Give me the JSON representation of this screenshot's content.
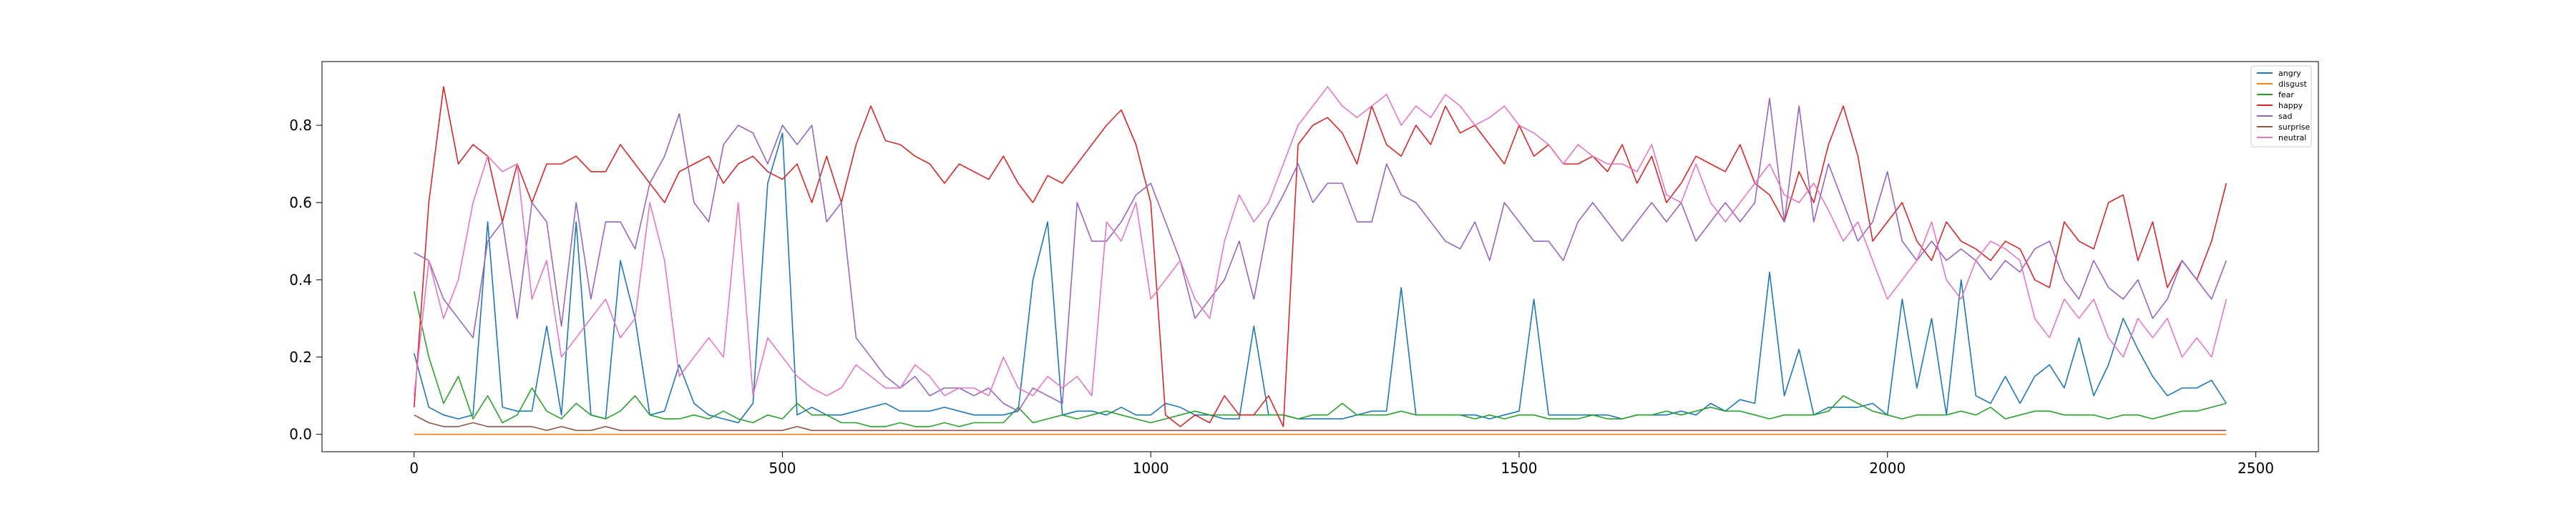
{
  "chart_data": {
    "type": "line",
    "title": "",
    "xlabel": "",
    "ylabel": "",
    "xlim": [
      -125,
      2585
    ],
    "ylim": [
      -0.045,
      0.965
    ],
    "x_ticks": [
      0,
      500,
      1000,
      1500,
      2000,
      2500
    ],
    "x_tick_labels": [
      "0",
      "500",
      "1000",
      "1500",
      "2000",
      "2500"
    ],
    "y_ticks": [
      0.0,
      0.2,
      0.4,
      0.6,
      0.8
    ],
    "y_tick_labels": [
      "0.0",
      "0.2",
      "0.4",
      "0.6",
      "0.8"
    ],
    "grid": false,
    "legend_placement": "top-right",
    "x_range": [
      0,
      2460
    ],
    "sample_step": 20,
    "series": [
      {
        "name": "angry",
        "color": "#1f77b4",
        "values": [
          0.21,
          0.07,
          0.05,
          0.04,
          0.05,
          0.55,
          0.07,
          0.06,
          0.06,
          0.28,
          0.05,
          0.55,
          0.05,
          0.04,
          0.45,
          0.3,
          0.05,
          0.06,
          0.18,
          0.08,
          0.05,
          0.04,
          0.03,
          0.08,
          0.65,
          0.78,
          0.05,
          0.07,
          0.05,
          0.05,
          0.06,
          0.07,
          0.08,
          0.06,
          0.06,
          0.06,
          0.07,
          0.06,
          0.05,
          0.05,
          0.05,
          0.06,
          0.4,
          0.55,
          0.05,
          0.06,
          0.06,
          0.05,
          0.07,
          0.05,
          0.05,
          0.08,
          0.07,
          0.05,
          0.05,
          0.04,
          0.04,
          0.28,
          0.05,
          0.05,
          0.04,
          0.04,
          0.04,
          0.04,
          0.05,
          0.06,
          0.06,
          0.38,
          0.05,
          0.05,
          0.05,
          0.05,
          0.05,
          0.04,
          0.05,
          0.06,
          0.35,
          0.05,
          0.05,
          0.05,
          0.05,
          0.05,
          0.04,
          0.05,
          0.05,
          0.05,
          0.06,
          0.05,
          0.08,
          0.06,
          0.09,
          0.08,
          0.42,
          0.1,
          0.22,
          0.05,
          0.07,
          0.07,
          0.07,
          0.08,
          0.05,
          0.35,
          0.12,
          0.3,
          0.05,
          0.4,
          0.1,
          0.08,
          0.15,
          0.08,
          0.15,
          0.18,
          0.12,
          0.25,
          0.1,
          0.18,
          0.3,
          0.22,
          0.15,
          0.1,
          0.12,
          0.12,
          0.14,
          0.08
        ]
      },
      {
        "name": "disgust",
        "color": "#ff7f0e",
        "values": [
          0.0,
          0.0,
          0.0,
          0.0,
          0.0,
          0.0,
          0.0,
          0.0,
          0.0,
          0.0,
          0.0,
          0.0,
          0.0,
          0.0,
          0.0,
          0.0,
          0.0,
          0.0,
          0.0,
          0.0,
          0.0,
          0.0,
          0.0,
          0.0,
          0.0,
          0.0,
          0.0,
          0.0,
          0.0,
          0.0,
          0.0,
          0.0,
          0.0,
          0.0,
          0.0,
          0.0,
          0.0,
          0.0,
          0.0,
          0.0,
          0.0,
          0.0,
          0.0,
          0.0,
          0.0,
          0.0,
          0.0,
          0.0,
          0.0,
          0.0,
          0.0,
          0.0,
          0.0,
          0.0,
          0.0,
          0.0,
          0.0,
          0.0,
          0.0,
          0.0,
          0.0,
          0.0,
          0.0,
          0.0,
          0.0,
          0.0,
          0.0,
          0.0,
          0.0,
          0.0,
          0.0,
          0.0,
          0.0,
          0.0,
          0.0,
          0.0,
          0.0,
          0.0,
          0.0,
          0.0,
          0.0,
          0.0,
          0.0,
          0.0,
          0.0,
          0.0,
          0.0,
          0.0,
          0.0,
          0.0,
          0.0,
          0.0,
          0.0,
          0.0,
          0.0,
          0.0,
          0.0,
          0.0,
          0.0,
          0.0,
          0.0,
          0.0,
          0.0,
          0.0,
          0.0,
          0.0,
          0.0,
          0.0,
          0.0,
          0.0,
          0.0,
          0.0,
          0.0,
          0.0,
          0.0,
          0.0,
          0.0,
          0.0,
          0.0,
          0.0,
          0.0,
          0.0,
          0.0,
          0.0
        ]
      },
      {
        "name": "fear",
        "color": "#2ca02c",
        "values": [
          0.37,
          0.2,
          0.08,
          0.15,
          0.04,
          0.1,
          0.03,
          0.05,
          0.12,
          0.06,
          0.04,
          0.08,
          0.05,
          0.04,
          0.06,
          0.1,
          0.05,
          0.04,
          0.04,
          0.05,
          0.04,
          0.06,
          0.04,
          0.03,
          0.05,
          0.04,
          0.08,
          0.05,
          0.05,
          0.03,
          0.03,
          0.02,
          0.02,
          0.03,
          0.02,
          0.02,
          0.03,
          0.02,
          0.03,
          0.03,
          0.03,
          0.07,
          0.03,
          0.04,
          0.05,
          0.04,
          0.05,
          0.06,
          0.05,
          0.04,
          0.03,
          0.04,
          0.05,
          0.06,
          0.05,
          0.05,
          0.05,
          0.05,
          0.05,
          0.05,
          0.04,
          0.05,
          0.05,
          0.08,
          0.05,
          0.05,
          0.05,
          0.06,
          0.05,
          0.05,
          0.05,
          0.05,
          0.04,
          0.05,
          0.04,
          0.05,
          0.05,
          0.04,
          0.04,
          0.04,
          0.05,
          0.04,
          0.04,
          0.05,
          0.05,
          0.06,
          0.05,
          0.06,
          0.07,
          0.06,
          0.06,
          0.05,
          0.04,
          0.05,
          0.05,
          0.05,
          0.06,
          0.1,
          0.08,
          0.06,
          0.05,
          0.04,
          0.05,
          0.05,
          0.05,
          0.06,
          0.05,
          0.07,
          0.04,
          0.05,
          0.06,
          0.06,
          0.05,
          0.05,
          0.05,
          0.04,
          0.05,
          0.05,
          0.04,
          0.05,
          0.06,
          0.06,
          0.07,
          0.08
        ]
      },
      {
        "name": "happy",
        "color": "#d62728",
        "values": [
          0.07,
          0.6,
          0.9,
          0.7,
          0.75,
          0.72,
          0.55,
          0.7,
          0.6,
          0.7,
          0.7,
          0.72,
          0.68,
          0.68,
          0.75,
          0.7,
          0.65,
          0.6,
          0.68,
          0.7,
          0.72,
          0.65,
          0.7,
          0.72,
          0.68,
          0.66,
          0.7,
          0.6,
          0.72,
          0.6,
          0.75,
          0.85,
          0.76,
          0.75,
          0.72,
          0.7,
          0.65,
          0.7,
          0.68,
          0.66,
          0.72,
          0.65,
          0.6,
          0.67,
          0.65,
          0.7,
          0.75,
          0.8,
          0.84,
          0.75,
          0.6,
          0.05,
          0.02,
          0.05,
          0.03,
          0.1,
          0.05,
          0.05,
          0.1,
          0.02,
          0.75,
          0.8,
          0.82,
          0.78,
          0.7,
          0.85,
          0.75,
          0.72,
          0.8,
          0.75,
          0.85,
          0.78,
          0.8,
          0.75,
          0.7,
          0.8,
          0.72,
          0.75,
          0.7,
          0.7,
          0.72,
          0.68,
          0.75,
          0.65,
          0.72,
          0.6,
          0.65,
          0.72,
          0.7,
          0.68,
          0.75,
          0.65,
          0.62,
          0.55,
          0.68,
          0.6,
          0.75,
          0.85,
          0.72,
          0.5,
          0.55,
          0.6,
          0.5,
          0.45,
          0.55,
          0.5,
          0.48,
          0.45,
          0.5,
          0.48,
          0.4,
          0.38,
          0.55,
          0.5,
          0.48,
          0.6,
          0.62,
          0.45,
          0.55,
          0.38,
          0.45,
          0.4,
          0.5,
          0.65
        ]
      },
      {
        "name": "sad",
        "color": "#9467bd",
        "values": [
          0.47,
          0.45,
          0.35,
          0.3,
          0.25,
          0.5,
          0.55,
          0.3,
          0.6,
          0.55,
          0.28,
          0.6,
          0.35,
          0.55,
          0.55,
          0.48,
          0.65,
          0.72,
          0.83,
          0.6,
          0.55,
          0.75,
          0.8,
          0.78,
          0.7,
          0.8,
          0.75,
          0.8,
          0.55,
          0.6,
          0.25,
          0.2,
          0.15,
          0.12,
          0.15,
          0.1,
          0.12,
          0.12,
          0.1,
          0.12,
          0.08,
          0.06,
          0.12,
          0.1,
          0.08,
          0.6,
          0.5,
          0.5,
          0.55,
          0.62,
          0.65,
          0.55,
          0.45,
          0.3,
          0.35,
          0.4,
          0.5,
          0.35,
          0.55,
          0.62,
          0.7,
          0.6,
          0.65,
          0.65,
          0.55,
          0.55,
          0.7,
          0.62,
          0.6,
          0.55,
          0.5,
          0.48,
          0.55,
          0.45,
          0.6,
          0.55,
          0.5,
          0.5,
          0.45,
          0.55,
          0.6,
          0.55,
          0.5,
          0.55,
          0.6,
          0.55,
          0.6,
          0.5,
          0.55,
          0.6,
          0.55,
          0.6,
          0.87,
          0.55,
          0.85,
          0.55,
          0.7,
          0.6,
          0.5,
          0.55,
          0.68,
          0.5,
          0.45,
          0.5,
          0.45,
          0.48,
          0.45,
          0.4,
          0.45,
          0.42,
          0.48,
          0.5,
          0.4,
          0.35,
          0.45,
          0.38,
          0.35,
          0.4,
          0.3,
          0.35,
          0.45,
          0.4,
          0.35,
          0.45
        ]
      },
      {
        "name": "surprise",
        "color": "#8c564b",
        "values": [
          0.05,
          0.03,
          0.02,
          0.02,
          0.03,
          0.02,
          0.02,
          0.02,
          0.02,
          0.01,
          0.02,
          0.01,
          0.01,
          0.02,
          0.01,
          0.01,
          0.01,
          0.01,
          0.01,
          0.01,
          0.01,
          0.01,
          0.01,
          0.01,
          0.01,
          0.01,
          0.02,
          0.01,
          0.01,
          0.01,
          0.01,
          0.01,
          0.01,
          0.01,
          0.01,
          0.01,
          0.01,
          0.01,
          0.01,
          0.01,
          0.01,
          0.01,
          0.01,
          0.01,
          0.01,
          0.01,
          0.01,
          0.01,
          0.01,
          0.01,
          0.01,
          0.01,
          0.01,
          0.01,
          0.01,
          0.01,
          0.01,
          0.01,
          0.01,
          0.01,
          0.01,
          0.01,
          0.01,
          0.01,
          0.01,
          0.01,
          0.01,
          0.01,
          0.01,
          0.01,
          0.01,
          0.01,
          0.01,
          0.01,
          0.01,
          0.01,
          0.01,
          0.01,
          0.01,
          0.01,
          0.01,
          0.01,
          0.01,
          0.01,
          0.01,
          0.01,
          0.01,
          0.01,
          0.01,
          0.01,
          0.01,
          0.01,
          0.01,
          0.01,
          0.01,
          0.01,
          0.01,
          0.01,
          0.01,
          0.01,
          0.01,
          0.01,
          0.01,
          0.01,
          0.01,
          0.01,
          0.01,
          0.01,
          0.01,
          0.01,
          0.01,
          0.01,
          0.01,
          0.01,
          0.01,
          0.01,
          0.01,
          0.01,
          0.01,
          0.01,
          0.01,
          0.01,
          0.01,
          0.01
        ]
      },
      {
        "name": "neutral",
        "color": "#e377c2",
        "values": [
          0.1,
          0.45,
          0.3,
          0.4,
          0.6,
          0.72,
          0.68,
          0.7,
          0.35,
          0.45,
          0.2,
          0.25,
          0.3,
          0.35,
          0.25,
          0.3,
          0.6,
          0.45,
          0.15,
          0.2,
          0.25,
          0.2,
          0.6,
          0.1,
          0.25,
          0.2,
          0.15,
          0.12,
          0.1,
          0.12,
          0.18,
          0.15,
          0.12,
          0.12,
          0.18,
          0.15,
          0.1,
          0.12,
          0.12,
          0.1,
          0.2,
          0.12,
          0.1,
          0.15,
          0.12,
          0.15,
          0.1,
          0.55,
          0.5,
          0.6,
          0.35,
          0.4,
          0.45,
          0.35,
          0.3,
          0.5,
          0.62,
          0.55,
          0.6,
          0.7,
          0.8,
          0.85,
          0.9,
          0.85,
          0.82,
          0.85,
          0.88,
          0.8,
          0.85,
          0.82,
          0.88,
          0.85,
          0.8,
          0.82,
          0.85,
          0.8,
          0.78,
          0.75,
          0.7,
          0.75,
          0.72,
          0.7,
          0.7,
          0.68,
          0.75,
          0.62,
          0.6,
          0.7,
          0.6,
          0.55,
          0.6,
          0.65,
          0.7,
          0.62,
          0.6,
          0.65,
          0.58,
          0.5,
          0.55,
          0.45,
          0.35,
          0.4,
          0.45,
          0.55,
          0.4,
          0.35,
          0.45,
          0.5,
          0.48,
          0.45,
          0.3,
          0.25,
          0.35,
          0.3,
          0.35,
          0.25,
          0.2,
          0.3,
          0.25,
          0.3,
          0.2,
          0.25,
          0.2,
          0.35
        ]
      }
    ]
  }
}
